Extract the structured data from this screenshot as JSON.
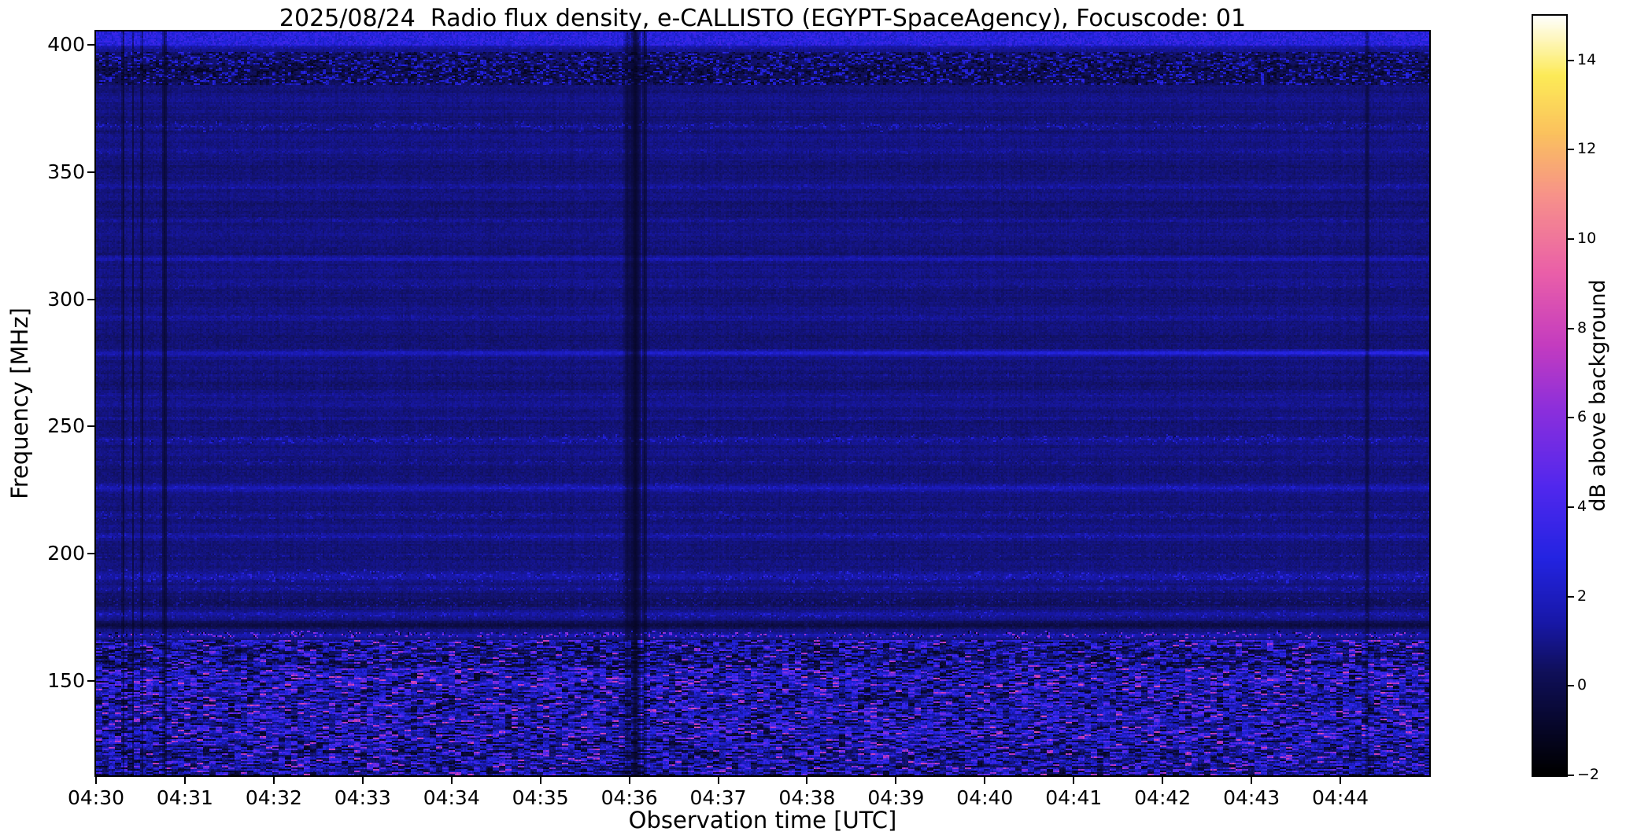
{
  "chart_data": {
    "type": "heatmap",
    "title": "2025/08/24  Radio flux density, e-CALLISTO (EGYPT-SpaceAgency), Focuscode: 01",
    "xlabel": "Observation time [UTC]",
    "ylabel": "Frequency [MHz]",
    "x_ticks": [
      "04:30",
      "04:31",
      "04:32",
      "04:33",
      "04:34",
      "04:35",
      "04:36",
      "04:37",
      "04:38",
      "04:39",
      "04:40",
      "04:41",
      "04:42",
      "04:43",
      "04:44"
    ],
    "x_range_minutes": [
      0,
      15
    ],
    "y_ticks": [
      400,
      350,
      300,
      250,
      200,
      150
    ],
    "y_range_mhz": [
      112.9,
      405.3
    ],
    "colorbar": {
      "label": "dB above background",
      "ticks": [
        14,
        12,
        10,
        8,
        6,
        4,
        2,
        0,
        -2
      ],
      "range": [
        -2,
        15
      ]
    },
    "colormap_stops": [
      [
        0.0,
        "#000000"
      ],
      [
        0.09,
        "#0a0a3c"
      ],
      [
        0.135,
        "#10105a"
      ],
      [
        0.2,
        "#1818a8"
      ],
      [
        0.285,
        "#2424e2"
      ],
      [
        0.38,
        "#5228ee"
      ],
      [
        0.48,
        "#8c2fdc"
      ],
      [
        0.565,
        "#c43cc0"
      ],
      [
        0.66,
        "#ea5fa9"
      ],
      [
        0.76,
        "#f7918b"
      ],
      [
        0.845,
        "#fbc25e"
      ],
      [
        0.92,
        "#fdeb57"
      ],
      [
        1.0,
        "#ffffff"
      ]
    ],
    "features": {
      "noisy_region_max_freq": 166,
      "bands": [
        {
          "f": 401.5,
          "hw": 3.5,
          "amp": 1.8,
          "sp": 1.0
        },
        {
          "f": 390,
          "hw": 4,
          "amp": -0.3,
          "sp": 0
        },
        {
          "f": 368,
          "hw": 2,
          "amp": 0.4,
          "sp": 1.6
        },
        {
          "f": 358,
          "hw": 1.2,
          "amp": 0.2,
          "sp": 0.7
        },
        {
          "f": 344,
          "hw": 1.2,
          "amp": 0.25,
          "sp": 0.7
        },
        {
          "f": 331,
          "hw": 1.2,
          "amp": 0.2,
          "sp": 0.6
        },
        {
          "f": 316,
          "hw": 1.8,
          "amp": 0.85,
          "sp": 0.5
        },
        {
          "f": 305,
          "hw": 1.2,
          "amp": 0.3,
          "sp": 0.6
        },
        {
          "f": 293,
          "hw": 1.2,
          "amp": 0.25,
          "sp": 0.6
        },
        {
          "f": 279,
          "hw": 1.6,
          "amp": 1.5,
          "sp": 0.5,
          "g": 1
        },
        {
          "f": 270,
          "hw": 1,
          "amp": 0.25,
          "sp": 0.5
        },
        {
          "f": 262,
          "hw": 1,
          "amp": 0.3,
          "sp": 0.5
        },
        {
          "f": 253,
          "hw": 1,
          "amp": 0.25,
          "sp": 0.6
        },
        {
          "f": 245,
          "hw": 2,
          "amp": 0.3,
          "sp": 1.7
        },
        {
          "f": 236,
          "hw": 1.2,
          "amp": 0.3,
          "sp": 0.9
        },
        {
          "f": 226,
          "hw": 1.8,
          "amp": 0.9,
          "sp": 0.9
        },
        {
          "f": 215,
          "hw": 2,
          "amp": 0.4,
          "sp": 1.1
        },
        {
          "f": 207,
          "hw": 1.6,
          "amp": 0.4,
          "sp": 1.0
        },
        {
          "f": 199,
          "hw": 1.2,
          "amp": 0.3,
          "sp": 0.8
        },
        {
          "f": 191,
          "hw": 2.6,
          "amp": 0.45,
          "sp": 1.9
        },
        {
          "f": 186,
          "hw": 1.4,
          "amp": 0.4,
          "sp": 1.2
        },
        {
          "f": 181,
          "hw": 2.2,
          "amp": -0.5,
          "sp": 1.0
        },
        {
          "f": 176,
          "hw": 1.6,
          "amp": 0.6,
          "sp": 1.4
        },
        {
          "f": 172,
          "hw": 2.0,
          "amp": -1.4,
          "sp": 0.5
        },
        {
          "f": 168,
          "hw": 1.6,
          "amp": 0.9,
          "sp": 5.5
        }
      ],
      "vlines": [
        {
          "t": 0.02,
          "w": 1.0,
          "m": 0.45
        },
        {
          "t": 0.027,
          "w": 0.8,
          "m": 0.5
        },
        {
          "t": 0.034,
          "w": 0.8,
          "m": 0.45
        },
        {
          "t": 0.051,
          "w": 1.6,
          "m": 0.38
        },
        {
          "t": 0.398,
          "w": 2.2,
          "m": 0.5
        },
        {
          "t": 0.404,
          "w": 3.5,
          "m": 0.22
        },
        {
          "t": 0.411,
          "w": 1.4,
          "m": 0.42
        },
        {
          "t": 0.953,
          "w": 1.6,
          "m": 0.55
        }
      ]
    },
    "seed": 20250824
  }
}
